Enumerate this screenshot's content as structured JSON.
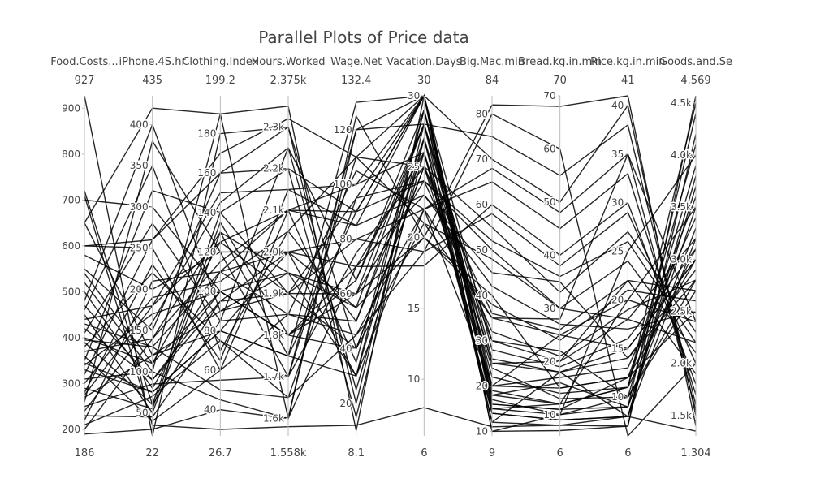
{
  "chart_data": {
    "type": "parallel-coordinates",
    "title": "Parallel Plots of Price data",
    "line_color": "#000000",
    "dimensions": [
      {
        "label": "Food.Costs...",
        "range": [
          186,
          927
        ],
        "range_labels": [
          "186",
          "927"
        ],
        "ticks": [
          200,
          300,
          400,
          500,
          600,
          700,
          800,
          900
        ],
        "tick_labels": [
          "200",
          "300",
          "400",
          "500",
          "600",
          "700",
          "800",
          "900"
        ]
      },
      {
        "label": "iPhone.4S.hr",
        "range": [
          22,
          435
        ],
        "range_labels": [
          "22",
          "435"
        ],
        "ticks": [
          50,
          100,
          150,
          200,
          250,
          300,
          350,
          400
        ],
        "tick_labels": [
          "50",
          "100",
          "150",
          "200",
          "250",
          "300",
          "350",
          "400"
        ]
      },
      {
        "label": "Clothing.Index",
        "range": [
          26.7,
          199.2
        ],
        "range_labels": [
          "26.7",
          "199.2"
        ],
        "ticks": [
          40,
          60,
          80,
          100,
          120,
          140,
          160,
          180
        ],
        "tick_labels": [
          "40",
          "60",
          "80",
          "100",
          "120",
          "140",
          "160",
          "180"
        ]
      },
      {
        "label": "Hours.Worked",
        "range": [
          1558,
          2375
        ],
        "range_labels": [
          "1.558k",
          "2.375k"
        ],
        "ticks": [
          1600,
          1700,
          1800,
          1900,
          2000,
          2100,
          2200,
          2300
        ],
        "tick_labels": [
          "1.6k",
          "1.7k",
          "1.8k",
          "1.9k",
          "2.0k",
          "2.1k",
          "2.2k",
          "2.3k"
        ]
      },
      {
        "label": "Wage.Net",
        "range": [
          8.1,
          132.4
        ],
        "range_labels": [
          "8.1",
          "132.4"
        ],
        "ticks": [
          20,
          40,
          60,
          80,
          100,
          120
        ],
        "tick_labels": [
          "20",
          "40",
          "60",
          "80",
          "100",
          "120"
        ]
      },
      {
        "label": "Vacation.Days",
        "range": [
          6,
          30
        ],
        "range_labels": [
          "6",
          "30"
        ],
        "ticks": [
          10,
          15,
          20,
          25,
          30
        ],
        "tick_labels": [
          "10",
          "15",
          "20",
          "25",
          "30"
        ]
      },
      {
        "label": "Big.Mac.min",
        "range": [
          9,
          84
        ],
        "range_labels": [
          "9",
          "84"
        ],
        "ticks": [
          10,
          20,
          30,
          40,
          50,
          60,
          70,
          80
        ],
        "tick_labels": [
          "10",
          "20",
          "30",
          "40",
          "50",
          "60",
          "70",
          "80"
        ]
      },
      {
        "label": "Bread.kg.in.min",
        "range": [
          6,
          70
        ],
        "range_labels": [
          "6",
          "70"
        ],
        "ticks": [
          10,
          20,
          30,
          40,
          50,
          60,
          70
        ],
        "tick_labels": [
          "10",
          "20",
          "30",
          "40",
          "50",
          "60",
          "70"
        ]
      },
      {
        "label": "Rice.kg.in.min",
        "range": [
          6,
          41
        ],
        "range_labels": [
          "6",
          "41"
        ],
        "ticks": [
          10,
          15,
          20,
          25,
          30,
          35,
          40
        ],
        "tick_labels": [
          "10",
          "15",
          "20",
          "25",
          "30",
          "35",
          "40"
        ]
      },
      {
        "label": "Goods.and.Se",
        "range": [
          1304,
          4569
        ],
        "range_labels": [
          "1.304",
          "4.569"
        ],
        "ticks": [
          1500,
          2000,
          2500,
          3000,
          3500,
          4000,
          4500
        ],
        "tick_labels": [
          "1.5k",
          "2.0k",
          "2.5k",
          "3.0k",
          "3.5k",
          "4.0k",
          "4.5k"
        ]
      }
    ],
    "records": [
      [
        927,
        22,
        180,
        2300,
        20,
        28,
        12,
        18,
        8,
        3200
      ],
      [
        720,
        60,
        140,
        1900,
        40,
        25,
        30,
        22,
        10,
        2800
      ],
      [
        700,
        300,
        100,
        1800,
        60,
        20,
        40,
        15,
        12,
        2500
      ],
      [
        650,
        120,
        80,
        2000,
        80,
        22,
        20,
        25,
        15,
        3000
      ],
      [
        600,
        250,
        60,
        2100,
        100,
        26,
        15,
        12,
        20,
        3500
      ],
      [
        580,
        200,
        120,
        1700,
        120,
        30,
        10,
        10,
        25,
        4000
      ],
      [
        550,
        150,
        160,
        2200,
        90,
        24,
        50,
        30,
        18,
        2200
      ],
      [
        520,
        100,
        190,
        1600,
        70,
        18,
        60,
        40,
        30,
        1800
      ],
      [
        500,
        80,
        110,
        1850,
        50,
        27,
        25,
        20,
        22,
        2700
      ],
      [
        480,
        400,
        90,
        1950,
        30,
        29,
        18,
        16,
        9,
        3300
      ],
      [
        460,
        350,
        70,
        2050,
        110,
        21,
        35,
        28,
        35,
        2400
      ],
      [
        450,
        50,
        130,
        1750,
        130,
        30,
        70,
        50,
        40,
        1500
      ],
      [
        440,
        180,
        150,
        2150,
        85,
        23,
        45,
        35,
        14,
        2900
      ],
      [
        430,
        130,
        50,
        1650,
        45,
        19,
        80,
        60,
        6,
        2000
      ],
      [
        420,
        90,
        100,
        1800,
        65,
        28,
        22,
        14,
        11,
        4500
      ],
      [
        410,
        280,
        85,
        2250,
        25,
        26,
        14,
        9,
        8,
        3800
      ],
      [
        400,
        110,
        125,
        1900,
        95,
        30,
        28,
        19,
        16,
        3100
      ],
      [
        390,
        60,
        95,
        2000,
        55,
        20,
        38,
        24,
        21,
        2600
      ],
      [
        380,
        220,
        75,
        1700,
        75,
        25,
        55,
        33,
        27,
        2300
      ],
      [
        370,
        140,
        115,
        2100,
        35,
        29,
        16,
        11,
        12,
        3600
      ],
      [
        360,
        40,
        60,
        1850,
        105,
        22,
        65,
        45,
        33,
        1700
      ],
      [
        350,
        320,
        140,
        2200,
        15,
        27,
        12,
        8,
        7,
        4200
      ],
      [
        340,
        170,
        100,
        1950,
        60,
        24,
        32,
        21,
        19,
        2800
      ],
      [
        330,
        75,
        80,
        1750,
        90,
        30,
        20,
        17,
        13,
        3400
      ],
      [
        320,
        260,
        160,
        2300,
        40,
        21,
        48,
        30,
        24,
        2100
      ],
      [
        310,
        100,
        45,
        1600,
        120,
        28,
        75,
        55,
        38,
        1600
      ],
      [
        300,
        190,
        105,
        2050,
        50,
        26,
        24,
        13,
        10,
        3900
      ],
      [
        290,
        55,
        135,
        1800,
        70,
        23,
        42,
        27,
        17,
        2500
      ],
      [
        280,
        230,
        65,
        2150,
        100,
        30,
        17,
        10,
        9,
        4400
      ],
      [
        270,
        120,
        90,
        1900,
        80,
        19,
        58,
        38,
        29,
        2000
      ],
      [
        260,
        380,
        120,
        2000,
        30,
        27,
        14,
        9,
        8,
        3700
      ],
      [
        250,
        85,
        55,
        1700,
        110,
        25,
        36,
        26,
        22,
        1900
      ],
      [
        240,
        160,
        145,
        2250,
        65,
        29,
        26,
        18,
        15,
        3000
      ],
      [
        230,
        45,
        85,
        1850,
        45,
        22,
        68,
        48,
        35,
        1550
      ],
      [
        220,
        210,
        110,
        2100,
        85,
        30,
        19,
        12,
        11,
        4100
      ],
      [
        210,
        70,
        75,
        1650,
        95,
        24,
        52,
        36,
        26,
        2200
      ],
      [
        200,
        140,
        130,
        1950,
        55,
        28,
        30,
        20,
        18,
        3200
      ],
      [
        190,
        30,
        40,
        1600,
        125,
        20,
        82,
        68,
        41,
        1400
      ],
      [
        650,
        420,
        190,
        2350,
        10,
        30,
        10,
        7,
        7,
        4569
      ],
      [
        710,
        35,
        30,
        1580,
        12,
        8,
        11,
        8,
        8,
        1350
      ],
      [
        600,
        260,
        170,
        2320,
        110,
        30,
        15,
        10,
        10,
        2700
      ],
      [
        540,
        110,
        100,
        1800,
        40,
        25,
        20,
        15,
        12,
        3000
      ],
      [
        470,
        90,
        95,
        1900,
        60,
        28,
        25,
        18,
        14,
        2800
      ],
      [
        395,
        130,
        110,
        2000,
        70,
        26,
        18,
        12,
        11,
        3100
      ],
      [
        345,
        75,
        80,
        1750,
        30,
        22,
        35,
        25,
        20,
        2400
      ],
      [
        275,
        180,
        125,
        2100,
        90,
        30,
        16,
        11,
        9,
        3500
      ]
    ]
  }
}
